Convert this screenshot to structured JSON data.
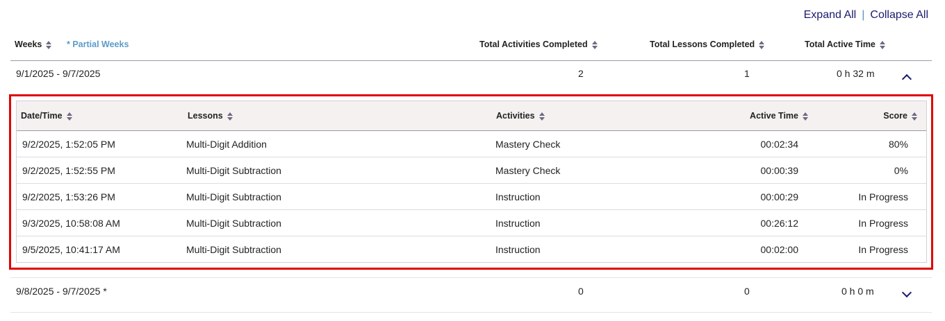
{
  "actions": {
    "expand_all": "Expand All",
    "separator": "|",
    "collapse_all": "Collapse All"
  },
  "columns": {
    "weeks": "Weeks",
    "partial_note": "* Partial Weeks",
    "activities": "Total Activities Completed",
    "lessons": "Total Lessons Completed",
    "time": "Total Active Time"
  },
  "weeks": [
    {
      "range": "9/1/2025 - 9/7/2025",
      "activities": "2",
      "lessons": "1",
      "time": "0 h 32 m",
      "expanded": true
    },
    {
      "range": "9/8/2025 - 9/7/2025 *",
      "activities": "0",
      "lessons": "0",
      "time": "0 h 0 m",
      "expanded": false
    }
  ],
  "detail": {
    "headers": {
      "date": "Date/Time",
      "lesson": "Lessons",
      "activity": "Activities",
      "time": "Active Time",
      "score": "Score"
    },
    "rows": [
      {
        "date": "9/2/2025, 1:52:05 PM",
        "lesson": "Multi-Digit Addition",
        "activity": "Mastery Check",
        "time": "00:02:34",
        "score": "80%"
      },
      {
        "date": "9/2/2025, 1:52:55 PM",
        "lesson": "Multi-Digit Subtraction",
        "activity": "Mastery Check",
        "time": "00:00:39",
        "score": "0%"
      },
      {
        "date": "9/2/2025, 1:53:26 PM",
        "lesson": "Multi-Digit Subtraction",
        "activity": "Instruction",
        "time": "00:00:29",
        "score": "In Progress"
      },
      {
        "date": "9/3/2025, 10:58:08 AM",
        "lesson": "Multi-Digit Subtraction",
        "activity": "Instruction",
        "time": "00:26:12",
        "score": "In Progress"
      },
      {
        "date": "9/5/2025, 10:41:17 AM",
        "lesson": "Multi-Digit Subtraction",
        "activity": "Instruction",
        "time": "00:02:00",
        "score": "In Progress"
      }
    ]
  },
  "colors": {
    "highlight": "#e00000",
    "link": "#1a1a6e",
    "partial": "#5b9bc8"
  }
}
